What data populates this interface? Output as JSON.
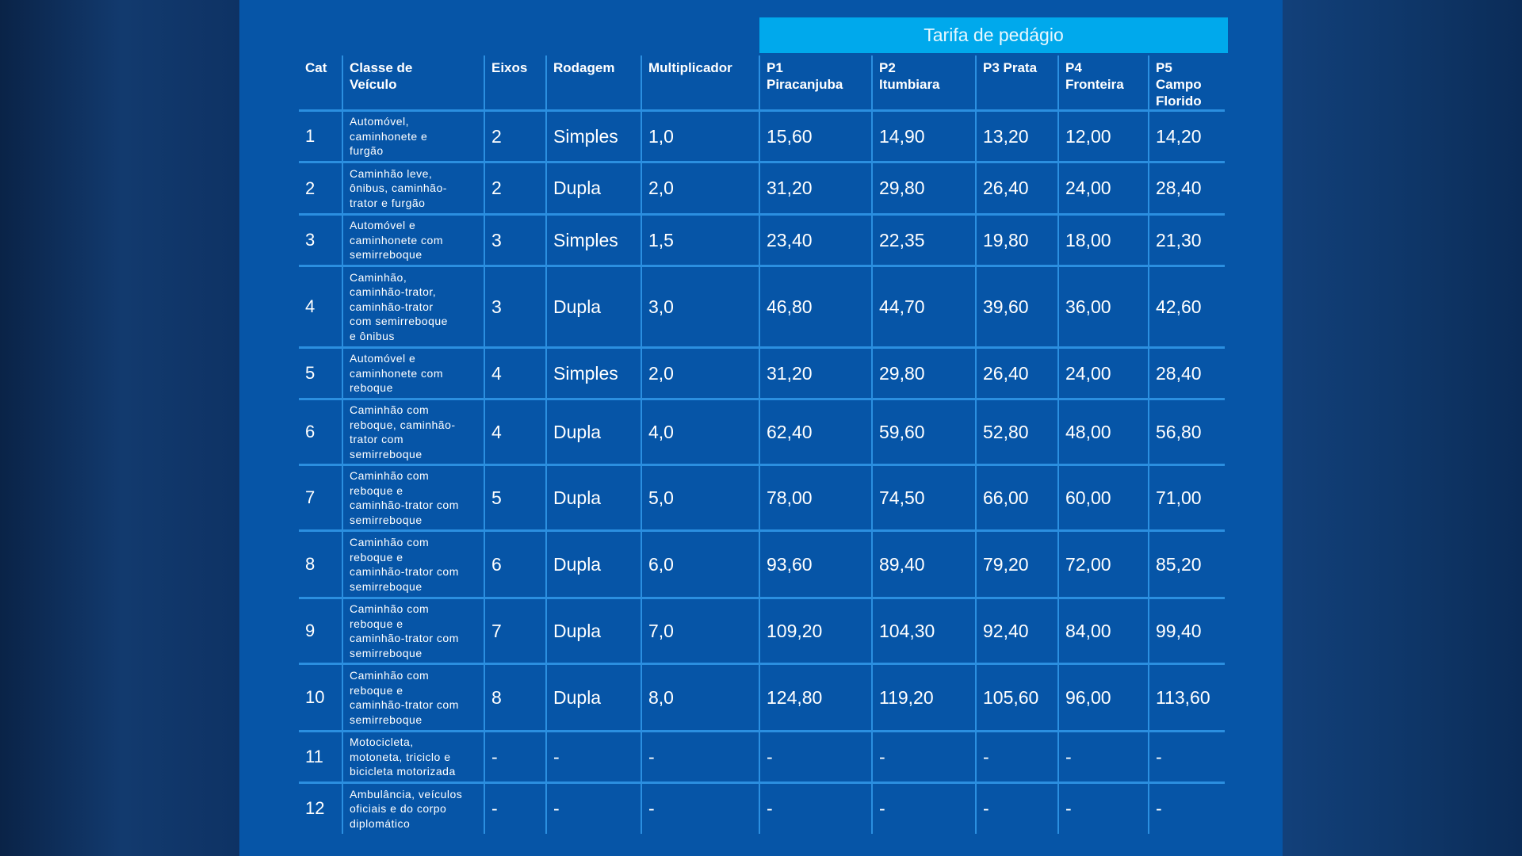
{
  "group_header": "Tarifa de pedágio",
  "columns": [
    "Cat",
    "Classe de Veículo",
    "Eixos",
    "Rodagem",
    "Multiplicador",
    "P1 Piracanjuba",
    "P2 Itumbiara",
    "P3 Prata",
    "P4 Fronteira",
    "P5 Campo Florido"
  ],
  "column_lines": [
    [
      "Cat"
    ],
    [
      "Classe de",
      "Veículo"
    ],
    [
      "Eixos"
    ],
    [
      "Rodagem"
    ],
    [
      "Multiplicador"
    ],
    [
      "P1",
      "Piracanjuba"
    ],
    [
      "P2",
      "Itumbiara"
    ],
    [
      "P3 Prata"
    ],
    [
      "P4",
      "Fronteira"
    ],
    [
      "P5",
      "Campo",
      "Florido"
    ]
  ],
  "rows": [
    {
      "cat": "1",
      "desc": [
        "Automóvel,",
        "caminhonete e",
        "furgão"
      ],
      "eixos": "2",
      "rodagem": "Simples",
      "mult": "1,0",
      "tarifas": [
        "15,60",
        "14,90",
        "13,20",
        "12,00",
        "14,20"
      ]
    },
    {
      "cat": "2",
      "desc": [
        "Caminhão leve,",
        "ônibus, caminhão-",
        "trator e furgão"
      ],
      "eixos": "2",
      "rodagem": "Dupla",
      "mult": "2,0",
      "tarifas": [
        "31,20",
        "29,80",
        "26,40",
        "24,00",
        "28,40"
      ]
    },
    {
      "cat": "3",
      "desc": [
        "Automóvel e",
        "caminhonete com",
        "semirreboque"
      ],
      "eixos": "3",
      "rodagem": "Simples",
      "mult": "1,5",
      "tarifas": [
        "23,40",
        "22,35",
        "19,80",
        "18,00",
        "21,30"
      ]
    },
    {
      "cat": "4",
      "desc": [
        "Caminhão,",
        "caminhão-trator,",
        "caminhão-trator",
        "com semirreboque",
        "e ônibus"
      ],
      "eixos": "3",
      "rodagem": "Dupla",
      "mult": "3,0",
      "tarifas": [
        "46,80",
        "44,70",
        "39,60",
        "36,00",
        "42,60"
      ]
    },
    {
      "cat": "5",
      "desc": [
        "Automóvel e",
        "caminhonete com",
        "reboque"
      ],
      "eixos": "4",
      "rodagem": "Simples",
      "mult": "2,0",
      "tarifas": [
        "31,20",
        "29,80",
        "26,40",
        "24,00",
        "28,40"
      ]
    },
    {
      "cat": "6",
      "desc": [
        "Caminhão com",
        "reboque, caminhão-",
        "trator com",
        "semirreboque"
      ],
      "eixos": "4",
      "rodagem": "Dupla",
      "mult": "4,0",
      "tarifas": [
        "62,40",
        "59,60",
        "52,80",
        "48,00",
        "56,80"
      ]
    },
    {
      "cat": "7",
      "desc": [
        "Caminhão com",
        "reboque e",
        "caminhão-trator com",
        "semirreboque"
      ],
      "eixos": "5",
      "rodagem": "Dupla",
      "mult": "5,0",
      "tarifas": [
        "78,00",
        "74,50",
        "66,00",
        "60,00",
        "71,00"
      ]
    },
    {
      "cat": "8",
      "desc": [
        "Caminhão com",
        "reboque e",
        "caminhão-trator com",
        "semirreboque"
      ],
      "eixos": "6",
      "rodagem": "Dupla",
      "mult": "6,0",
      "tarifas": [
        "93,60",
        "89,40",
        "79,20",
        "72,00",
        "85,20"
      ]
    },
    {
      "cat": "9",
      "desc": [
        "Caminhão com",
        "reboque e",
        "caminhão-trator com",
        "semirreboque"
      ],
      "eixos": "7",
      "rodagem": "Dupla",
      "mult": "7,0",
      "tarifas": [
        "109,20",
        "104,30",
        "92,40",
        "84,00",
        "99,40"
      ]
    },
    {
      "cat": "10",
      "desc": [
        "Caminhão com",
        "reboque e",
        "caminhão-trator com",
        "semirreboque"
      ],
      "eixos": "8",
      "rodagem": "Dupla",
      "mult": "8,0",
      "tarifas": [
        "124,80",
        "119,20",
        "105,60",
        "96,00",
        "113,60"
      ]
    },
    {
      "cat": "11",
      "desc": [
        "Motocicleta,",
        "motoneta, triciclo e",
        "bicicleta motorizada"
      ],
      "eixos": "-",
      "rodagem": "-",
      "mult": "-",
      "tarifas": [
        "-",
        "-",
        "-",
        "-",
        "-"
      ]
    },
    {
      "cat": "12",
      "desc": [
        "Ambulância, veículos",
        "oficiais e do corpo",
        "diplomático"
      ],
      "eixos": "-",
      "rodagem": "-",
      "mult": "-",
      "tarifas": [
        "-",
        "-",
        "-",
        "-",
        "-"
      ]
    }
  ],
  "colors": {
    "panel": "#0655a7",
    "grid": "#2b8fe0",
    "header_bar": "#00a9ec"
  }
}
